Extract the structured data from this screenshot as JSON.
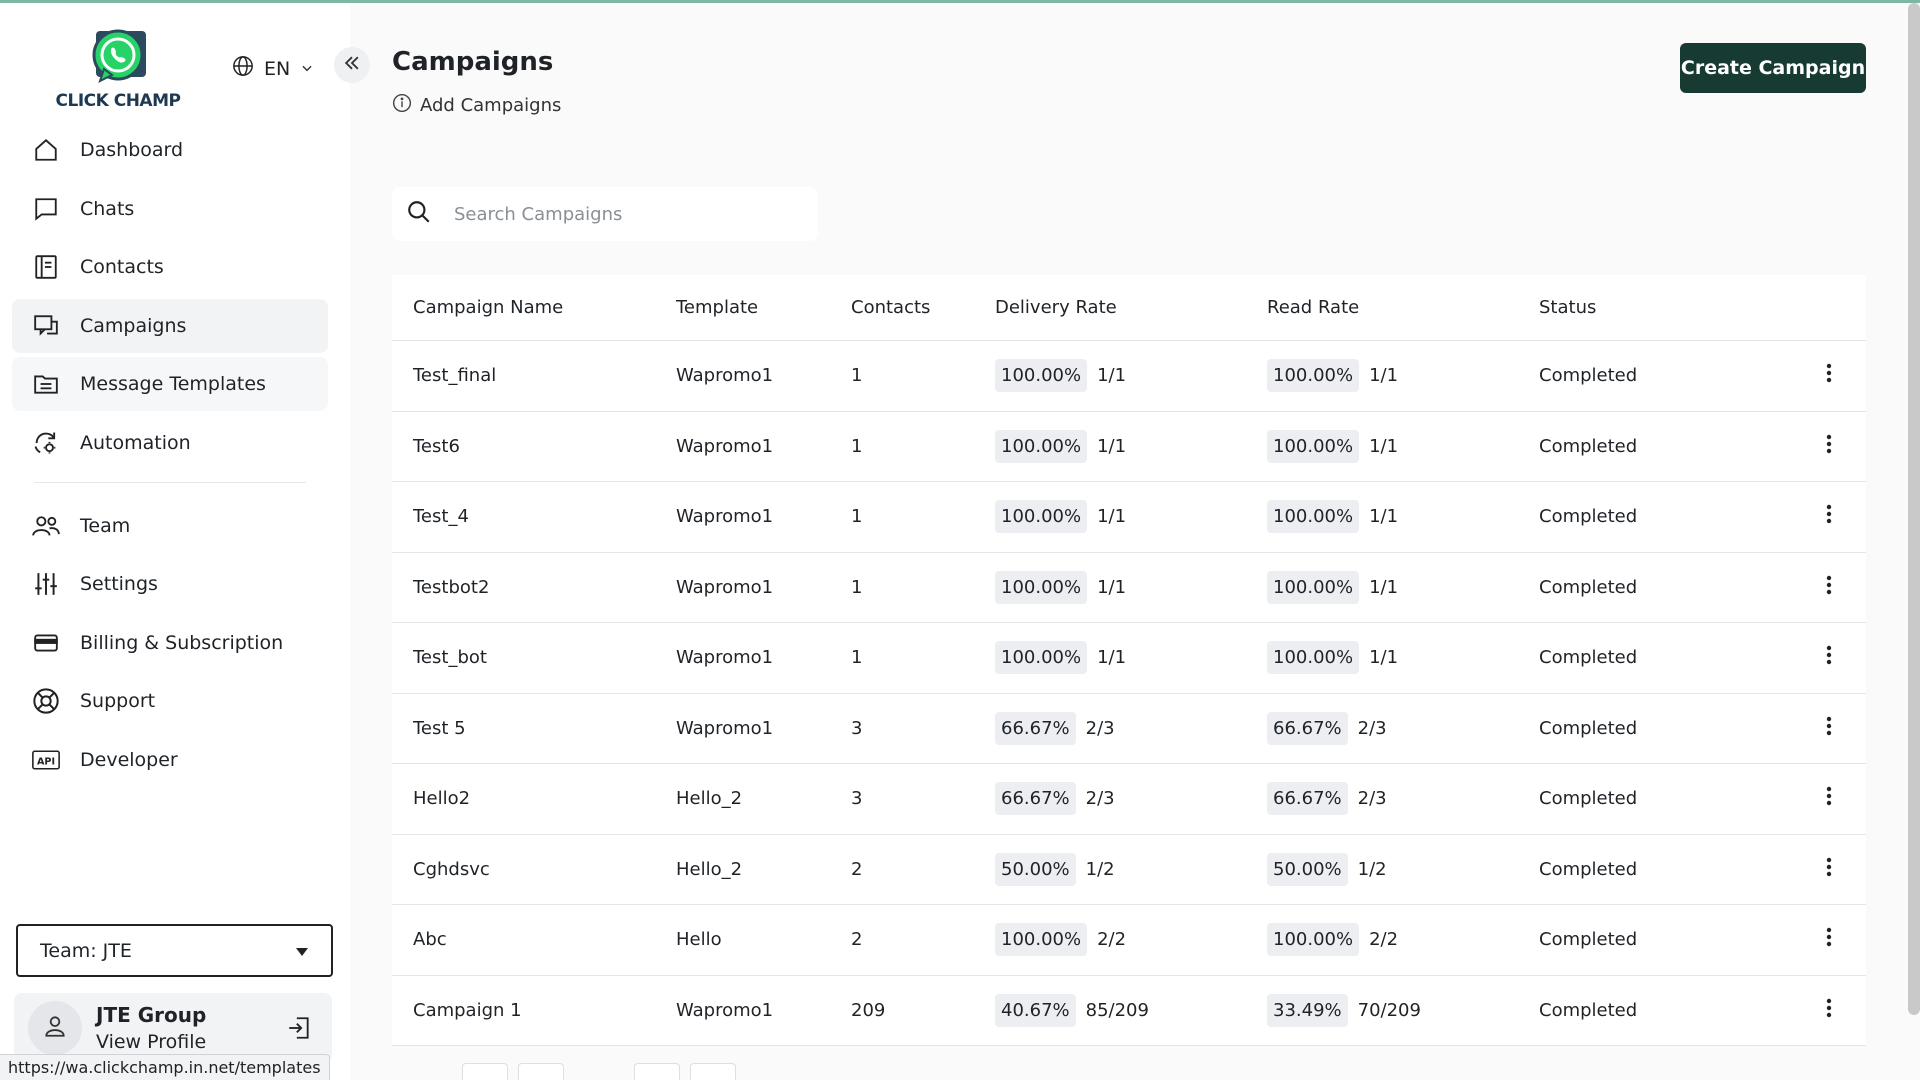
{
  "app": {
    "brand": "CLICK CHAMP",
    "language": "EN",
    "colors": {
      "primary": "#173a33",
      "brand_green": "#25d366",
      "accent_bar": "#7fb7a6"
    }
  },
  "sidebar": {
    "items": [
      {
        "label": "Dashboard",
        "icon": "home-icon"
      },
      {
        "label": "Chats",
        "icon": "chat-icon"
      },
      {
        "label": "Contacts",
        "icon": "contacts-icon"
      },
      {
        "label": "Campaigns",
        "icon": "campaigns-icon",
        "active": true
      },
      {
        "label": "Message Templates",
        "icon": "template-icon"
      },
      {
        "label": "Automation",
        "icon": "automation-icon"
      },
      {
        "label": "Team",
        "icon": "team-icon"
      },
      {
        "label": "Settings",
        "icon": "settings-icon"
      },
      {
        "label": "Billing & Subscription",
        "icon": "billing-icon"
      },
      {
        "label": "Support",
        "icon": "support-icon"
      },
      {
        "label": "Developer",
        "icon": "api-icon"
      }
    ],
    "team_select": "Team: JTE",
    "profile": {
      "name": "JTE Group",
      "link": "View Profile"
    }
  },
  "status_bar": {
    "url": "https://wa.clickchamp.in.net/templates"
  },
  "main": {
    "title": "Campaigns",
    "subtitle": "Add Campaigns",
    "create_button": "Create Campaign",
    "search": {
      "placeholder": "Search Campaigns",
      "value": ""
    },
    "table": {
      "headers": [
        "Campaign Name",
        "Template",
        "Contacts",
        "Delivery Rate",
        "Read Rate",
        "Status"
      ],
      "rows": [
        {
          "name": "Test_final",
          "template": "Wapromo1",
          "contacts": "1",
          "delivery_pct": "100.00%",
          "delivery_ratio": "1/1",
          "read_pct": "100.00%",
          "read_ratio": "1/1",
          "status": "Completed"
        },
        {
          "name": "Test6",
          "template": "Wapromo1",
          "contacts": "1",
          "delivery_pct": "100.00%",
          "delivery_ratio": "1/1",
          "read_pct": "100.00%",
          "read_ratio": "1/1",
          "status": "Completed"
        },
        {
          "name": "Test_4",
          "template": "Wapromo1",
          "contacts": "1",
          "delivery_pct": "100.00%",
          "delivery_ratio": "1/1",
          "read_pct": "100.00%",
          "read_ratio": "1/1",
          "status": "Completed"
        },
        {
          "name": "Testbot2",
          "template": "Wapromo1",
          "contacts": "1",
          "delivery_pct": "100.00%",
          "delivery_ratio": "1/1",
          "read_pct": "100.00%",
          "read_ratio": "1/1",
          "status": "Completed"
        },
        {
          "name": "Test_bot",
          "template": "Wapromo1",
          "contacts": "1",
          "delivery_pct": "100.00%",
          "delivery_ratio": "1/1",
          "read_pct": "100.00%",
          "read_ratio": "1/1",
          "status": "Completed"
        },
        {
          "name": "Test 5",
          "template": "Wapromo1",
          "contacts": "3",
          "delivery_pct": "66.67%",
          "delivery_ratio": "2/3",
          "read_pct": "66.67%",
          "read_ratio": "2/3",
          "status": "Completed"
        },
        {
          "name": "Hello2",
          "template": "Hello_2",
          "contacts": "3",
          "delivery_pct": "66.67%",
          "delivery_ratio": "2/3",
          "read_pct": "66.67%",
          "read_ratio": "2/3",
          "status": "Completed"
        },
        {
          "name": "Cghdsvc",
          "template": "Hello_2",
          "contacts": "2",
          "delivery_pct": "50.00%",
          "delivery_ratio": "1/2",
          "read_pct": "50.00%",
          "read_ratio": "1/2",
          "status": "Completed"
        },
        {
          "name": "Abc",
          "template": "Hello",
          "contacts": "2",
          "delivery_pct": "100.00%",
          "delivery_ratio": "2/2",
          "read_pct": "100.00%",
          "read_ratio": "2/2",
          "status": "Completed"
        },
        {
          "name": "Campaign 1",
          "template": "Wapromo1",
          "contacts": "209",
          "delivery_pct": "40.67%",
          "delivery_ratio": "85/209",
          "read_pct": "33.49%",
          "read_ratio": "70/209",
          "status": "Completed"
        }
      ]
    }
  }
}
